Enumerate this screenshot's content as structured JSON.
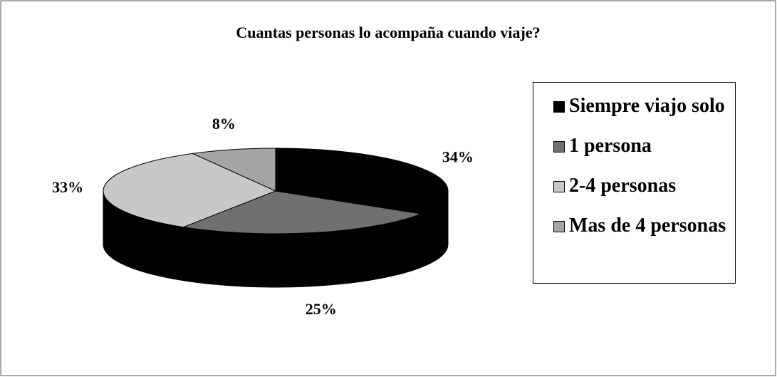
{
  "chart_data": {
    "type": "pie",
    "title": "Cuantas personas lo acompaña cuando viaje?",
    "categories": [
      "Siempre viajo solo",
      "1 persona",
      "2-4 personas",
      "Mas de 4 personas"
    ],
    "values": [
      34,
      25,
      33,
      8
    ],
    "value_labels": [
      "34%",
      "25%",
      "33%",
      "8%"
    ],
    "colors": [
      "#000000",
      "#707070",
      "#c8c8c8",
      "#a4a4a4"
    ],
    "legend": "right"
  }
}
